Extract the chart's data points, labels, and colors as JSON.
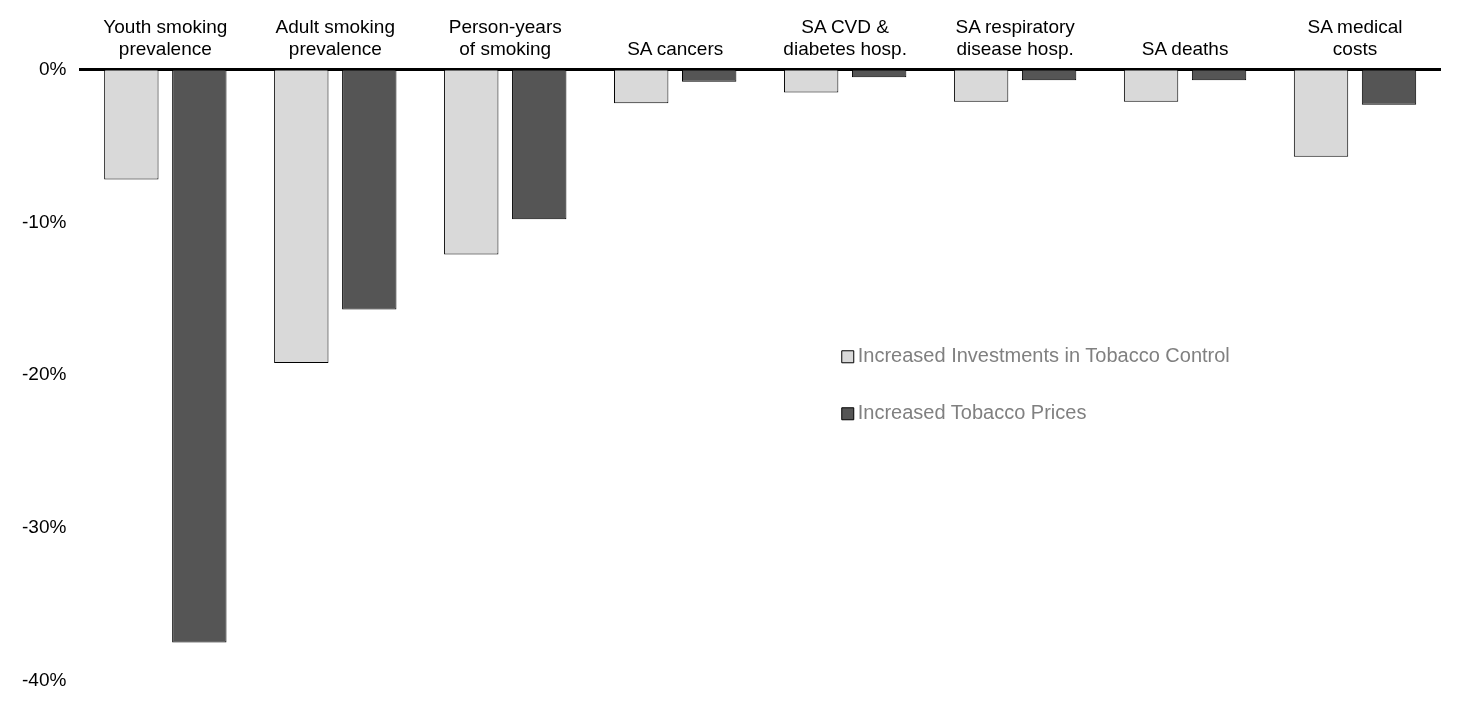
{
  "chart_data": {
    "type": "bar",
    "categories": [
      "Youth smoking prevalence",
      "Adult smoking prevalence",
      "Person-years of smoking",
      "SA cancers",
      "SA CVD & diabetes hosp.",
      "SA respiratory disease hosp.",
      "SA deaths",
      "SA medical costs"
    ],
    "series": [
      {
        "name": "Increased Investments in Tobacco Control",
        "color": "#d9d9d9",
        "values": [
          -7.2,
          -19.2,
          -12.1,
          -2.2,
          -1.5,
          -2.1,
          -2.1,
          -5.7
        ]
      },
      {
        "name": "Increased Tobacco Prices",
        "color": "#555555",
        "values": [
          -37.5,
          -15.7,
          -9.8,
          -0.8,
          -0.5,
          -0.7,
          -0.7,
          -2.3
        ]
      }
    ],
    "ylim": [
      -40,
      0
    ],
    "yticks": [
      {
        "value": -40,
        "label": "-40%"
      },
      {
        "value": -30,
        "label": "-30%"
      },
      {
        "value": -20,
        "label": "-20%"
      },
      {
        "value": -10,
        "label": "-10%"
      },
      {
        "value": 0,
        "label": "0%"
      }
    ],
    "grid": false,
    "legend": "right"
  }
}
